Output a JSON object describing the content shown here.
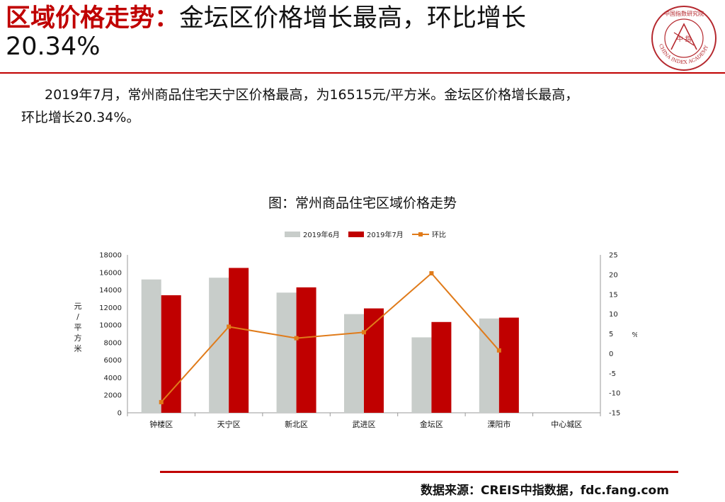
{
  "header": {
    "title_red": "区域价格走势：",
    "title_rest": "金坛区价格增长最高，环比增长",
    "title_line2": "20.34%"
  },
  "logo": {
    "top_text": "中国指数研究院",
    "center_text": "中 指",
    "ring_text": "CHINA INDEX ACADEMY",
    "color": "#b5282e"
  },
  "summary": {
    "line1": "2019年7月，常州商品住宅天宁区价格最高，为16515元/平方米。金坛区价格增长最高，",
    "line2": "环比增长20.34%。"
  },
  "chart_title": "图：常州商品住宅区域价格走势",
  "chart_data": {
    "type": "bar",
    "categories": [
      "钟楼区",
      "天宁区",
      "新北区",
      "武进区",
      "金坛区",
      "溧阳市",
      "中心城区"
    ],
    "series": [
      {
        "name": "2019年6月",
        "kind": "bar",
        "axis": "left",
        "color": "#c8cdca",
        "values": [
          15200,
          15400,
          13700,
          11250,
          8600,
          10750,
          null
        ]
      },
      {
        "name": "2019年7月",
        "kind": "bar",
        "axis": "left",
        "color": "#c00000",
        "values": [
          13400,
          16515,
          14300,
          11900,
          10350,
          10850,
          null
        ]
      },
      {
        "name": "环比",
        "kind": "line",
        "axis": "right",
        "color": "#e07b1a",
        "values": [
          -12.3,
          6.8,
          3.9,
          5.4,
          20.34,
          0.8,
          null
        ]
      }
    ],
    "ylabel": "元/平方米",
    "ylim": [
      0,
      18000
    ],
    "yticks": [
      0,
      2000,
      4000,
      6000,
      8000,
      10000,
      12000,
      14000,
      16000,
      18000
    ],
    "y2label": "%",
    "y2lim": [
      -15,
      25
    ],
    "y2ticks": [
      -15,
      -10,
      -5,
      0,
      5,
      10,
      15,
      20,
      25
    ],
    "legend_position": "top",
    "grid": false
  },
  "source": "数据来源：CREIS中指数据，fdc.fang.com"
}
